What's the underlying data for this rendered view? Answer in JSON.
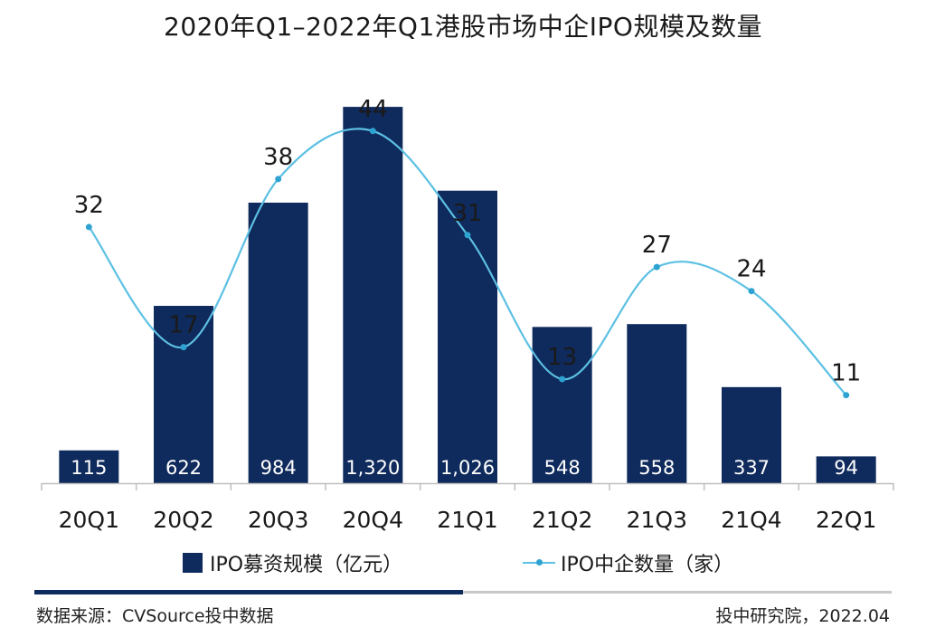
{
  "title": "2020年Q1–2022年Q1港股市场中企IPO规模及数量",
  "colors": {
    "bar": "#0f2a5c",
    "line": "#5cc0e3",
    "marker": "#2ea3d1"
  },
  "legend": {
    "bar_label": "IPO募资规模（亿元）",
    "line_label": "IPO中企数量（家）"
  },
  "footer": {
    "source": "数据来源：CVSource投中数据",
    "credit": "投中研究院，2022.04"
  },
  "chart_data": {
    "type": "bar",
    "categories": [
      "20Q1",
      "20Q2",
      "20Q3",
      "20Q4",
      "21Q1",
      "21Q2",
      "21Q3",
      "21Q4",
      "22Q1"
    ],
    "series": [
      {
        "name": "IPO募资规模（亿元）",
        "type": "bar",
        "values": [
          115,
          622,
          984,
          1320,
          1026,
          548,
          558,
          337,
          94
        ],
        "labels": [
          "115",
          "622",
          "984",
          "1,320",
          "1,026",
          "548",
          "558",
          "337",
          "94"
        ]
      },
      {
        "name": "IPO中企数量（家）",
        "type": "line",
        "values": [
          32,
          17,
          38,
          44,
          31,
          13,
          27,
          24,
          11
        ],
        "labels": [
          "32",
          "17",
          "38",
          "44",
          "31",
          "13",
          "27",
          "24",
          "11"
        ]
      }
    ],
    "bar_axis_range": [
      0,
      1460
    ],
    "line_axis_range": [
      0,
      52
    ],
    "legend_position": "bottom",
    "grid": false
  }
}
